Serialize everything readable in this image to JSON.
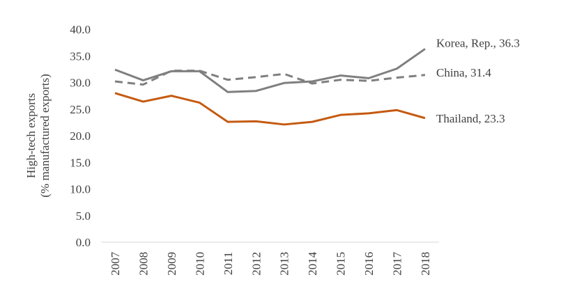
{
  "chart_data": {
    "type": "line",
    "title": "",
    "xlabel": "",
    "ylabel": [
      "High-tech exports",
      "(% manufactured exports)"
    ],
    "ylim": [
      0,
      40
    ],
    "yticks": [
      "0.0",
      "5.0",
      "10.0",
      "15.0",
      "20.0",
      "25.0",
      "30.0",
      "35.0",
      "40.0"
    ],
    "categories": [
      "2007",
      "2008",
      "2009",
      "2010",
      "2011",
      "2012",
      "2013",
      "2014",
      "2015",
      "2016",
      "2017",
      "2018"
    ],
    "grid": false,
    "series": [
      {
        "name": "Korea, Rep.",
        "end_label": "Korea, Rep., 36.3",
        "color": "#7f7f7f",
        "dash": false,
        "values": [
          32.4,
          30.4,
          32.1,
          32.1,
          28.2,
          28.4,
          29.9,
          30.2,
          31.3,
          30.8,
          32.6,
          36.3
        ]
      },
      {
        "name": "China",
        "end_label": "China, 31.4",
        "color": "#7f7f7f",
        "dash": true,
        "values": [
          30.2,
          29.6,
          32.2,
          32.2,
          30.5,
          31.0,
          31.6,
          29.8,
          30.5,
          30.3,
          30.9,
          31.4
        ]
      },
      {
        "name": "Thailand",
        "end_label": "Thailand, 23.3",
        "color": "#c55a11",
        "dash": false,
        "values": [
          28.0,
          26.4,
          27.5,
          26.2,
          22.6,
          22.7,
          22.1,
          22.6,
          23.9,
          24.2,
          24.8,
          23.3
        ]
      }
    ]
  }
}
